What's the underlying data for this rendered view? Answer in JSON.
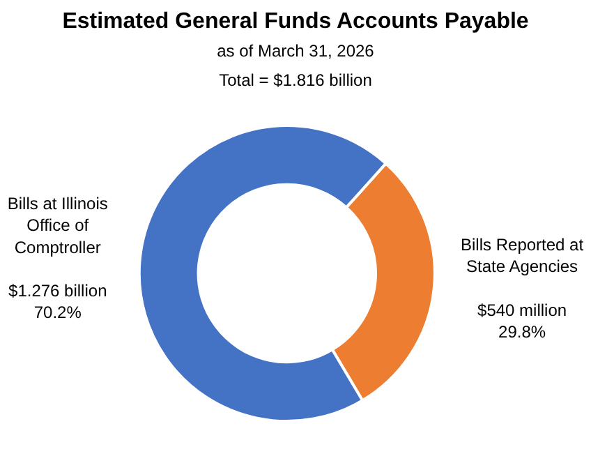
{
  "chart_data": {
    "type": "donut",
    "title": "Estimated General Funds Accounts Payable",
    "subtitle": "as of March 31, 2026\nTotal = $1.816 billion",
    "categories": [
      "Bills Reported at State Agencies",
      "Bills at Illinois Office of Comptroller"
    ],
    "values": [
      29.8,
      70.2
    ],
    "colors": [
      "#ed7d31",
      "#4472c4"
    ],
    "value_labels": [
      "$540 million\n29.8%",
      "$1.276 billion\n70.2%"
    ],
    "legend": false
  }
}
